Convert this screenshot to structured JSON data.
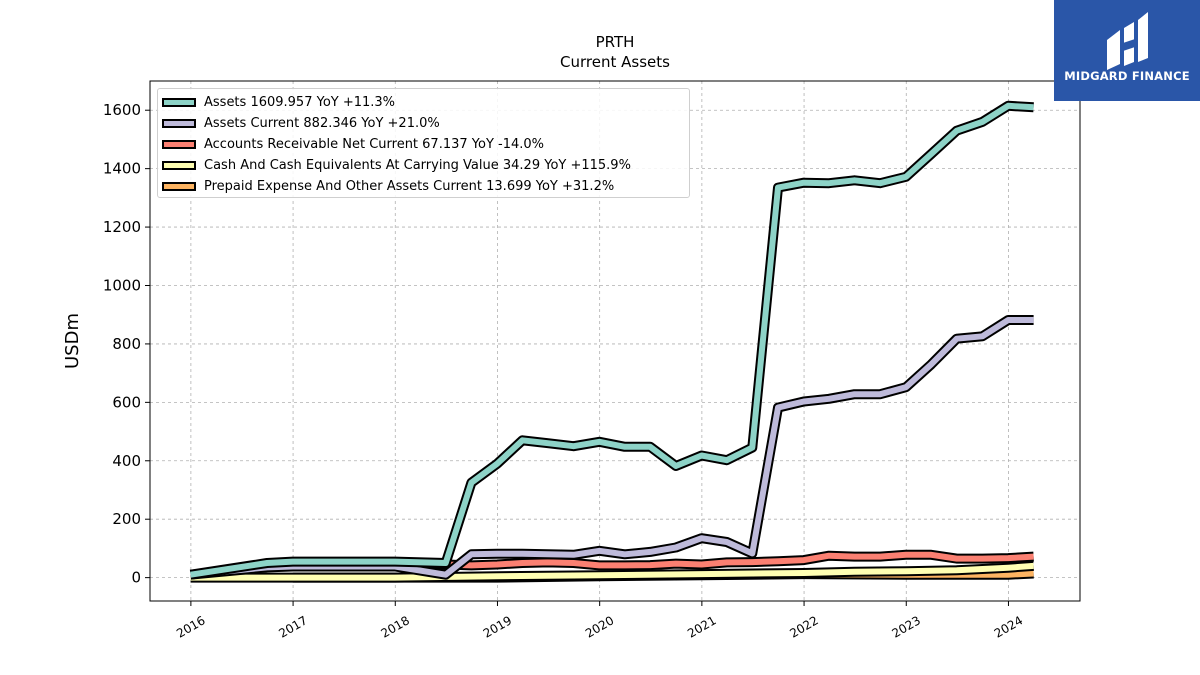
{
  "brand": {
    "name": "MIDGARD FINANCE",
    "color": "#2a56a8"
  },
  "chart_data": {
    "type": "line",
    "title": "PRTH",
    "subtitle": "Current  Assets",
    "ylabel": "USDm",
    "xlabel": "",
    "xlim": [
      2015.6,
      2024.7
    ],
    "ylim": [
      -80,
      1700
    ],
    "x_ticks": [
      "2016",
      "2017",
      "2018",
      "2019",
      "2020",
      "2021",
      "2022",
      "2023",
      "2024"
    ],
    "y_ticks": [
      "0",
      "200",
      "400",
      "600",
      "800",
      "1000",
      "1200",
      "1400",
      "1600"
    ],
    "grid": true,
    "legend_position": "top-left",
    "series": [
      {
        "name": "Assets  1609.957 YoY +11.3%",
        "color": "#8dd3c7",
        "x": [
          "2015-12-31",
          "2016-09-30",
          "2016-12-31",
          "2017-12-31",
          "2018-06-30",
          "2018-09-30",
          "2018-12-31",
          "2019-03-31",
          "2019-06-30",
          "2019-09-30",
          "2019-12-31",
          "2020-03-31",
          "2020-06-30",
          "2020-09-30",
          "2020-12-31",
          "2021-03-31",
          "2021-06-30",
          "2021-09-30",
          "2021-12-31",
          "2022-03-31",
          "2022-06-30",
          "2022-09-30",
          "2022-12-31",
          "2023-03-31",
          "2023-06-30",
          "2023-09-30",
          "2023-12-31",
          "2024-03-31"
        ],
        "y": [
          10,
          50,
          55,
          55,
          50,
          325,
          390,
          470,
          460,
          450,
          465,
          448,
          448,
          382,
          418,
          402,
          445,
          1335,
          1352,
          1350,
          1360,
          1350,
          1372,
          1450,
          1530,
          1560,
          1615,
          1610
        ]
      },
      {
        "name": "Assets Current  882.346 YoY +21.0%",
        "color": "#bebada",
        "x": [
          "2015-12-31",
          "2016-09-30",
          "2016-12-31",
          "2017-12-31",
          "2018-06-30",
          "2018-09-30",
          "2018-12-31",
          "2019-03-31",
          "2019-06-30",
          "2019-09-30",
          "2019-12-31",
          "2020-03-31",
          "2020-06-30",
          "2020-09-30",
          "2020-12-31",
          "2021-03-31",
          "2021-06-30",
          "2021-09-30",
          "2021-12-31",
          "2022-03-31",
          "2022-06-30",
          "2022-09-30",
          "2022-12-31",
          "2023-03-31",
          "2023-06-30",
          "2023-09-30",
          "2023-12-31",
          "2024-03-31"
        ],
        "y": [
          10,
          35,
          38,
          38,
          10,
          80,
          82,
          82,
          80,
          78,
          92,
          80,
          88,
          103,
          135,
          122,
          83,
          582,
          603,
          612,
          628,
          628,
          652,
          730,
          818,
          826,
          882,
          882
        ]
      },
      {
        "name": "Accounts Receivable Net Current  67.137 YoY -14.0%",
        "color": "#fb8072",
        "x": [
          "2017-12-31",
          "2018-06-30",
          "2018-09-30",
          "2018-12-31",
          "2019-03-31",
          "2019-06-30",
          "2019-09-30",
          "2019-12-31",
          "2020-03-31",
          "2020-06-30",
          "2020-09-30",
          "2020-12-31",
          "2021-03-31",
          "2021-06-30",
          "2021-09-30",
          "2021-12-31",
          "2022-03-31",
          "2022-06-30",
          "2022-09-30",
          "2022-12-31",
          "2023-03-31",
          "2023-06-30",
          "2023-09-30",
          "2023-12-31",
          "2024-03-31"
        ],
        "y": [
          48,
          45,
          42,
          45,
          50,
          52,
          50,
          42,
          42,
          43,
          48,
          45,
          52,
          53,
          56,
          60,
          75,
          72,
          72,
          78,
          78,
          65,
          65,
          67,
          72
        ]
      },
      {
        "name": "Cash And Cash Equivalents At Carrying Value  34.29 YoY +115.9%",
        "color": "#ffffb3",
        "x": [
          "2015-12-31",
          "2016-12-31",
          "2017-12-31",
          "2018-12-31",
          "2019-12-31",
          "2020-12-31",
          "2021-06-30",
          "2021-12-31",
          "2022-06-30",
          "2022-12-31",
          "2023-06-30",
          "2023-12-31",
          "2024-03-31"
        ],
        "y": [
          0,
          0,
          0,
          5,
          8,
          12,
          14,
          16,
          20,
          22,
          25,
          34,
          40
        ]
      },
      {
        "name": "Prepaid Expense And Other Assets Current  13.699 YoY +31.2%",
        "color": "#fdb462",
        "x": [
          "2016-12-31",
          "2017-12-31",
          "2018-12-31",
          "2019-12-31",
          "2020-12-31",
          "2021-12-31",
          "2022-12-31",
          "2023-12-31",
          "2024-03-31"
        ],
        "y": [
          0,
          0,
          0,
          5,
          8,
          12,
          10,
          10,
          14
        ]
      }
    ]
  }
}
